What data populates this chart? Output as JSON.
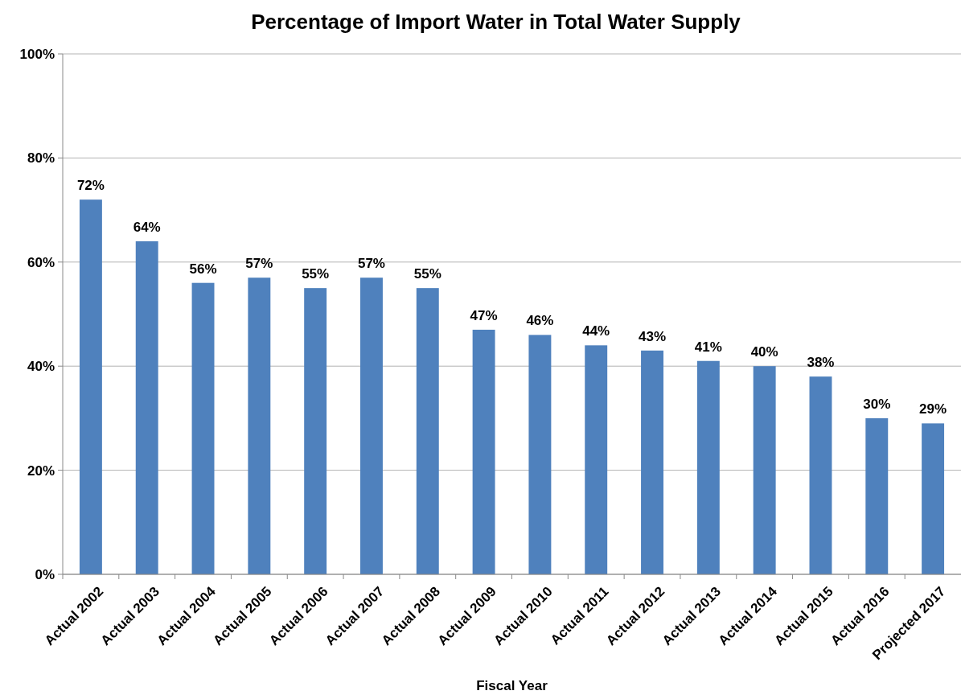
{
  "chart_data": {
    "type": "bar",
    "title": "Percentage of Import Water in Total Water Supply",
    "xlabel": "Fiscal Year",
    "categories": [
      "Actual 2002",
      "Actual 2003",
      "Actual 2004",
      "Actual 2005",
      "Actual 2006",
      "Actual 2007",
      "Actual 2008",
      "Actual 2009",
      "Actual 2010",
      "Actual 2011",
      "Actual 2012",
      "Actual 2013",
      "Actual 2014",
      "Actual 2015",
      "Actual 2016",
      "Projected 2017"
    ],
    "values": [
      72,
      64,
      56,
      57,
      55,
      57,
      55,
      47,
      46,
      44,
      43,
      41,
      40,
      38,
      30,
      29
    ],
    "value_labels": [
      "72%",
      "64%",
      "56%",
      "57%",
      "55%",
      "57%",
      "55%",
      "47%",
      "46%",
      "44%",
      "43%",
      "41%",
      "40%",
      "38%",
      "30%",
      "29%"
    ],
    "color": "#4f81bd",
    "ylim": [
      0,
      100
    ],
    "yticks": [
      {
        "value": 0,
        "label": "0%"
      },
      {
        "value": 20,
        "label": "20%"
      },
      {
        "value": 40,
        "label": "40%"
      },
      {
        "value": 60,
        "label": "60%"
      },
      {
        "value": 80,
        "label": "80%"
      },
      {
        "value": 100,
        "label": "100%"
      }
    ],
    "grid": "y"
  }
}
